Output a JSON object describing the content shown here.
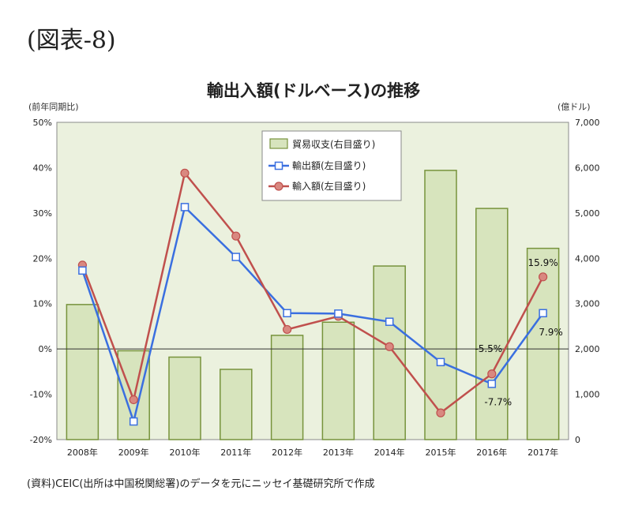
{
  "figure_label": "(図表-8)",
  "source_note": "(資料)CEIC(出所は中国税関総署)のデータを元にニッセイ基礎研究所で作成",
  "chart_data": {
    "type": "bar+line",
    "title": "輸出入額(ドルベース)の推移",
    "left_axis_unit": "(前年同期比)",
    "right_axis_unit": "(億ドル)",
    "categories": [
      "2008年",
      "2009年",
      "2010年",
      "2011年",
      "2012年",
      "2013年",
      "2014年",
      "2015年",
      "2016年",
      "2017年"
    ],
    "left_axis": {
      "min": -20,
      "max": 50,
      "step": 10,
      "tick_labels": [
        "-20%",
        "-10%",
        "0%",
        "10%",
        "20%",
        "30%",
        "40%",
        "50%"
      ]
    },
    "right_axis": {
      "min": 0,
      "max": 7000,
      "step": 1000,
      "tick_labels": [
        "0",
        "1,000",
        "2,000",
        "3,000",
        "4,000",
        "5,000",
        "6,000",
        "7,000"
      ]
    },
    "bars": {
      "name": "貿易収支(右目盛り)",
      "values": [
        2980,
        1960,
        1820,
        1550,
        2300,
        2590,
        3830,
        5940,
        5100,
        4220
      ],
      "color": "#d7e4bd",
      "stroke": "#77933c"
    },
    "series": [
      {
        "name": "輸出額(左目盛り)",
        "values": [
          17.3,
          -16.0,
          31.3,
          20.3,
          7.9,
          7.8,
          6.0,
          -2.9,
          -7.7,
          7.9
        ],
        "color": "#3a6fe0",
        "marker": "square"
      },
      {
        "name": "輸入額(左目盛り)",
        "values": [
          18.5,
          -11.2,
          38.8,
          24.9,
          4.3,
          7.2,
          0.5,
          -14.1,
          -5.5,
          15.9
        ],
        "color": "#c0504d",
        "marker": "circle"
      }
    ],
    "annotations": [
      "15.9%",
      "7.9%",
      "-5.5%",
      "-7.7%"
    ],
    "legend_position": "top-center",
    "plot_background": "#ebf1de",
    "zero_line": true
  }
}
